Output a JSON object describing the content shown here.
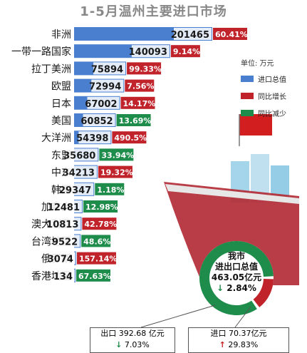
{
  "title": "1-5月温州主要进口市场",
  "legend": {
    "unit": "单位: 万元",
    "items": [
      {
        "label": "进口总值",
        "color": "#4a7fd0"
      },
      {
        "label": "同比增长",
        "color": "#c0232a"
      },
      {
        "label": "同比减少",
        "color": "#1e8c4a"
      }
    ]
  },
  "colors": {
    "bar": "#4a7fd0",
    "increase": "#c0232a",
    "decrease": "#1e8c4a"
  },
  "chart_data": {
    "type": "bar",
    "orientation": "horizontal",
    "title": "1-5月温州主要进口市场",
    "unit": "万元",
    "categories": [
      "非洲",
      "一带一路国家",
      "拉丁美洲",
      "欧盟",
      "日本",
      "美国",
      "大洋洲",
      "东盟",
      "中东",
      "韩国",
      "加拿大",
      "澳大利亚",
      "台湾地区",
      "俄罗斯",
      "香港地区"
    ],
    "values": [
      201465,
      140093,
      75894,
      72994,
      67002,
      60852,
      54398,
      35680,
      34213,
      29347,
      12481,
      10813,
      9522,
      3074,
      134
    ],
    "change_labels": [
      "60.41%",
      "9.14%",
      "99.33%",
      "7.56%",
      "14.17%",
      "13.69%",
      "490.5%",
      "33.94%",
      "19.32%",
      "1.18%",
      "12.98%",
      "42.78%",
      "48.6%",
      "157.14%",
      "67.63%"
    ],
    "change_direction": [
      "increase",
      "increase",
      "increase",
      "increase",
      "increase",
      "decrease",
      "increase",
      "decrease",
      "increase",
      "decrease",
      "decrease",
      "increase",
      "decrease",
      "increase",
      "decrease"
    ]
  },
  "total": {
    "line1": "我市",
    "line2": "进出口总值",
    "value": "463.05亿元",
    "change": "2.84%",
    "change_arrow": "↓",
    "export_share": 0.848,
    "import_share": 0.152
  },
  "export": {
    "label": "出口 392.68 亿元",
    "change": "7.03%",
    "arrow": "↓"
  },
  "import": {
    "label": "进口 70.37亿元",
    "change": "29.83%",
    "arrow": "↑"
  }
}
